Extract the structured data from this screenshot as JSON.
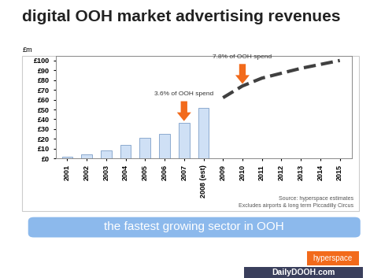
{
  "chart_data": {
    "type": "bar",
    "title": "digital OOH market advertising revenues",
    "y_unit_label": "£m",
    "categories": [
      "2001",
      "2002",
      "2003",
      "2004",
      "2005",
      "2006",
      "2007",
      "2008 (est)",
      "2009",
      "2010",
      "2011",
      "2012",
      "2013",
      "2014",
      "2015"
    ],
    "series": [
      {
        "type": "bar",
        "color": "#cfe0f5",
        "values": [
          2,
          4,
          8,
          14,
          21,
          25,
          36,
          52,
          null,
          null,
          null,
          null,
          null,
          null,
          null
        ]
      },
      {
        "type": "line",
        "color": "#404040",
        "line_style": "dashed",
        "values": [
          null,
          null,
          null,
          null,
          null,
          null,
          null,
          null,
          62,
          74,
          82,
          87,
          92,
          96,
          100
        ]
      }
    ],
    "ylim": [
      0,
      105
    ],
    "yticks": [
      {
        "value": 0,
        "label": "£0"
      },
      {
        "value": 10,
        "label": "£10"
      },
      {
        "value": 20,
        "label": "£20"
      },
      {
        "value": 30,
        "label": "£30"
      },
      {
        "value": 40,
        "label": "£40"
      },
      {
        "value": 50,
        "label": "£50"
      },
      {
        "value": 60,
        "label": "£60"
      },
      {
        "value": 70,
        "label": "£70"
      },
      {
        "value": 80,
        "label": "£80"
      },
      {
        "value": 90,
        "label": "£90"
      },
      {
        "value": 100,
        "label": "£100"
      }
    ],
    "grid": false,
    "annotations": [
      {
        "text": "3.6% of OOH spend",
        "category": "2007",
        "series": 0
      },
      {
        "text": "7.8% of OOH spend",
        "category": "2010",
        "series": 1
      }
    ],
    "notes": [
      "Source: hyperspace estimates",
      "Excludes airports & long term Piccadilly Circus"
    ],
    "banner": "the fastest growing sector in OOH",
    "logos": [
      "hyperspace",
      "DailyDOOH.com"
    ]
  }
}
